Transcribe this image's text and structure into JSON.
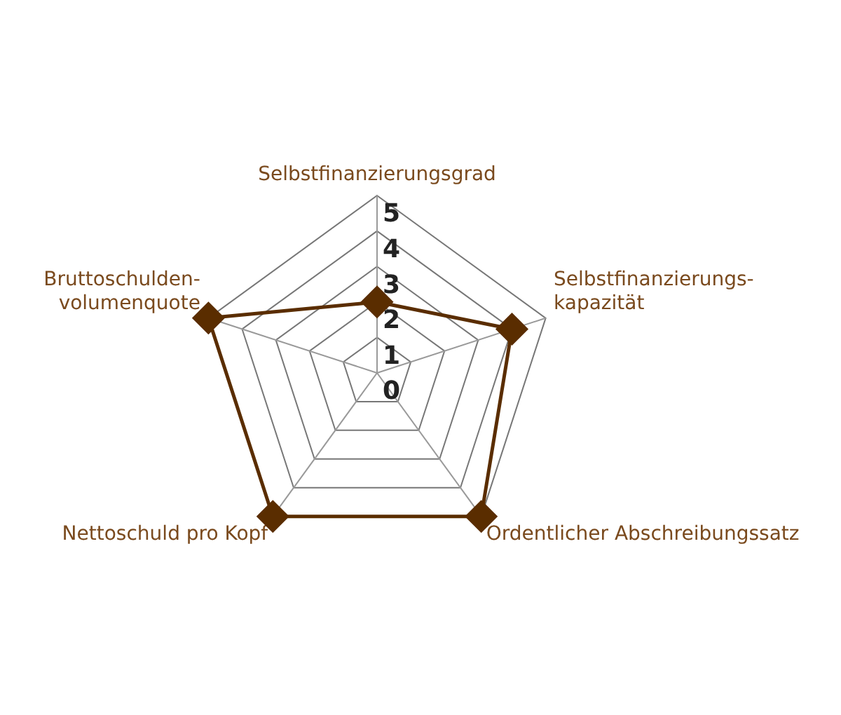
{
  "chart_data": {
    "type": "radar",
    "categories": [
      "Selbstfinanzierungsgrad",
      "Selbstfinanzierungs-kapazität",
      "Ordentlicher Abschreibungssatz",
      "Nettoschuld pro Kopf",
      "Bruttoschulden-volumenquote"
    ],
    "series": [
      {
        "color": "#5a2d00",
        "values": [
          2,
          4,
          5,
          5,
          5
        ]
      }
    ],
    "ylim": [
      0,
      5
    ],
    "yticks": [
      0,
      1,
      2,
      3,
      4,
      5
    ],
    "grid": true,
    "legend": false,
    "marker": "diamond",
    "line_style": "solid"
  }
}
